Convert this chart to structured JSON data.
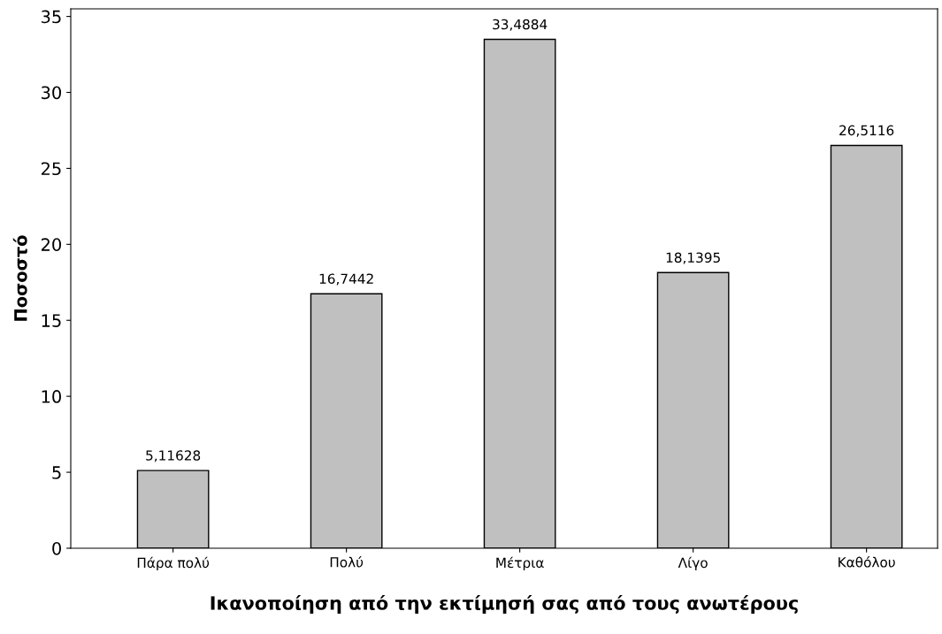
{
  "chart_data": {
    "type": "bar",
    "xlabel": "Ικανοποίηση από την εκτίμησή σας από τους ανωτέρους",
    "ylabel": "Ποσοστό",
    "categories": [
      "Πάρα πολύ",
      "Πολύ",
      "Μέτρια",
      "Λίγο",
      "Καθόλου"
    ],
    "values": [
      5.11628,
      16.7442,
      33.4884,
      18.1395,
      26.5116
    ],
    "value_labels": [
      "5,11628",
      "16,7442",
      "33,4884",
      "18,1395",
      "26,5116"
    ],
    "color": "#c0c0c0",
    "ylim": [
      0,
      35.5
    ],
    "yticks": [
      0,
      5,
      10,
      15,
      20,
      25,
      30,
      35
    ],
    "grid": false,
    "legend": false
  }
}
